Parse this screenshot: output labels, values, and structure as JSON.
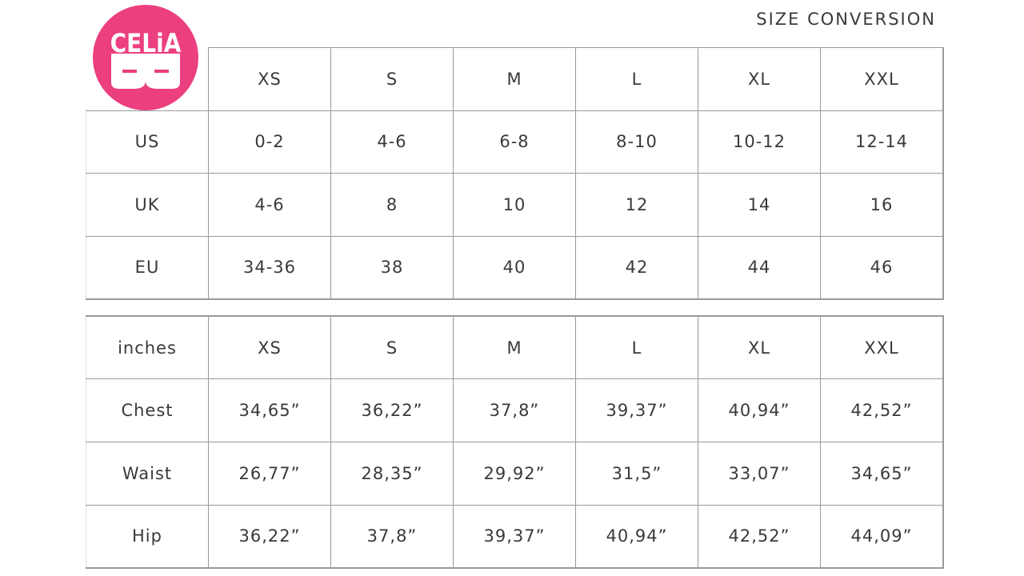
{
  "title": "SIZE  CONVERSION",
  "logo": {
    "text": "CELiA",
    "color": "#ec3f7f"
  },
  "conversion_table": {
    "headers": [
      "XS",
      "S",
      "M",
      "L",
      "XL",
      "XXL"
    ],
    "rows": [
      {
        "label": "US",
        "values": [
          "0-2",
          "4-6",
          "6-8",
          "8-10",
          "10-12",
          "12-14"
        ]
      },
      {
        "label": "UK",
        "values": [
          "4-6",
          "8",
          "10",
          "12",
          "14",
          "16"
        ]
      },
      {
        "label": "EU",
        "values": [
          "34-36",
          "38",
          "40",
          "42",
          "44",
          "46"
        ]
      }
    ]
  },
  "measurements_table": {
    "unit_label": "inches",
    "headers": [
      "XS",
      "S",
      "M",
      "L",
      "XL",
      "XXL"
    ],
    "rows": [
      {
        "label": "Chest",
        "values": [
          "34,65”",
          "36,22”",
          "37,8”",
          "39,37”",
          "40,94”",
          "42,52”"
        ]
      },
      {
        "label": "Waist",
        "values": [
          "26,77”",
          "28,35”",
          "29,92”",
          "31,5”",
          "33,07”",
          "34,65”"
        ]
      },
      {
        "label": "Hip",
        "values": [
          "36,22”",
          "37,8”",
          "39,37”",
          "40,94”",
          "42,52”",
          "44,09”"
        ]
      }
    ]
  }
}
